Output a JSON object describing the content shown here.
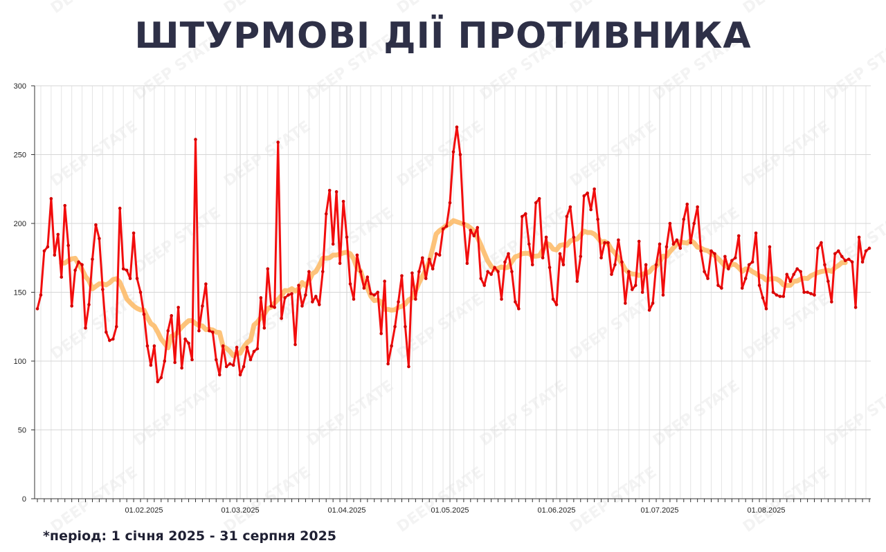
{
  "title": "ШТУРМОВІ ДІЇ ПРОТИВНИКА",
  "footer": "*період: 1 січня 2025 - 31 серпня 2025",
  "watermark": "DEEP STATE",
  "chart_data": {
    "type": "line",
    "title": "ШТУРМОВІ ДІЇ ПРОТИВНИКА",
    "xlabel": "",
    "ylabel": "",
    "x_start": "01.01.2025",
    "x_end": "31.08.2025",
    "ylim": [
      0,
      300
    ],
    "yticks": [
      0,
      50,
      100,
      150,
      200,
      250,
      300
    ],
    "xtick_labels": [
      "01.02.2025",
      "01.03.2025",
      "01.04.2025",
      "01.05.2025",
      "01.06.2025",
      "01.07.2025",
      "01.08.2025"
    ],
    "grid": true,
    "colors": {
      "daily": "#f20d0d",
      "trend": "#fdb863"
    },
    "series": [
      {
        "values": [
          138,
          148,
          180,
          183,
          218,
          177,
          192,
          161,
          213,
          184,
          140,
          166,
          172,
          170,
          124,
          141,
          174,
          199,
          189,
          152,
          121,
          115,
          116,
          125,
          211,
          167,
          166,
          160,
          193,
          160,
          150,
          134,
          111,
          97,
          111,
          85,
          88,
          100,
          122,
          133,
          99,
          139,
          95,
          116,
          113,
          101,
          261,
          122,
          140,
          156,
          122,
          121,
          101,
          90,
          111,
          96,
          98,
          97,
          110,
          90,
          96,
          110,
          101,
          107,
          109,
          146,
          124,
          167,
          140,
          139,
          259,
          131,
          146,
          148,
          149,
          112,
          155,
          140,
          148,
          165,
          143,
          147,
          141,
          165,
          207,
          224,
          185,
          223,
          171,
          216,
          190,
          156,
          145,
          177,
          165,
          153,
          161,
          149,
          148,
          150,
          120,
          158,
          98,
          111,
          125,
          143,
          162,
          125,
          96,
          164,
          145,
          165,
          175,
          160,
          174,
          167,
          178,
          177,
          196,
          198,
          215,
          252,
          270,
          250,
          200,
          171,
          195,
          191,
          197,
          160,
          155,
          165,
          163,
          168,
          165,
          145,
          172,
          178,
          165,
          143,
          138,
          205,
          207,
          185,
          170,
          215,
          218,
          175,
          190,
          168,
          145,
          141,
          178,
          170,
          205,
          212,
          190,
          158,
          176,
          220,
          222,
          210,
          225,
          203,
          175,
          186,
          186,
          163,
          170,
          188,
          172,
          142,
          165,
          152,
          155,
          187,
          150,
          170,
          137,
          142,
          170,
          185,
          148,
          183,
          200,
          185,
          188,
          182,
          203,
          214,
          186,
          200,
          212,
          180,
          165,
          160,
          180,
          178,
          155,
          153,
          176,
          167,
          173,
          175,
          191,
          153,
          160,
          170,
          172,
          193,
          155,
          146,
          138,
          183,
          150,
          148,
          147,
          147,
          163,
          158,
          163,
          167,
          165,
          150,
          150,
          149,
          148,
          182,
          186,
          170,
          158,
          143,
          178,
          180,
          176,
          173,
          174,
          172,
          139,
          190,
          172,
          180,
          182
        ]
      }
    ]
  }
}
